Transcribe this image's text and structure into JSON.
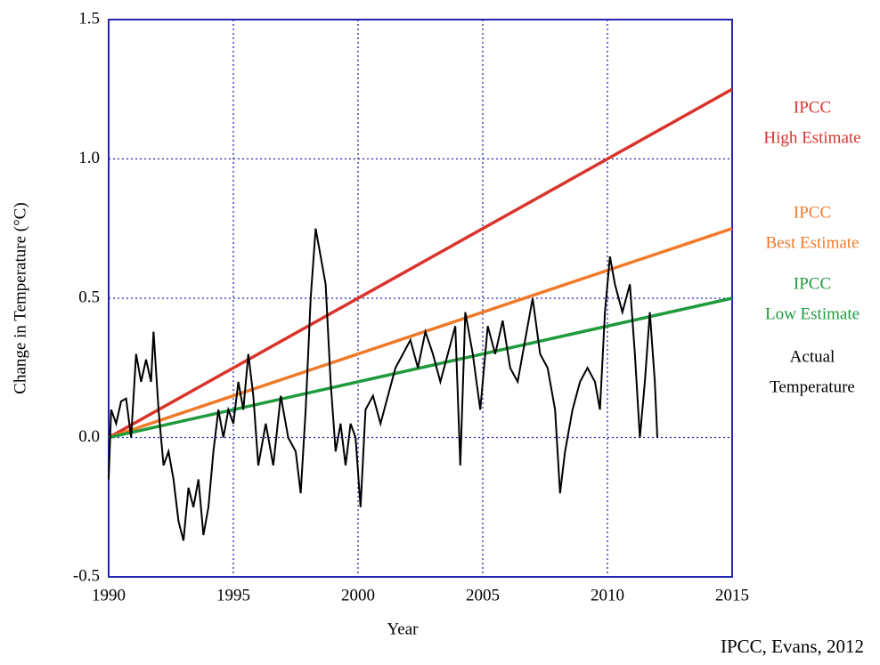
{
  "chart_data": {
    "type": "line",
    "xlabel": "Year",
    "ylabel": "Change in Temperature (°C)",
    "source": "IPCC, Evans, 2012",
    "xlim": [
      1990,
      2015
    ],
    "xticks": [
      1990,
      1995,
      2000,
      2005,
      2010,
      2015
    ],
    "ylim": [
      -0.5,
      1.5
    ],
    "yticks": [
      -0.5,
      {
        "value": 0,
        "label": "0.0"
      },
      0.5,
      {
        "value": 1,
        "label": "1.0"
      },
      1.5
    ],
    "grid": true,
    "series": [
      {
        "name": [
          "IPCC",
          "High Estimate"
        ],
        "color": "#d9342b",
        "x": [
          1990,
          2015
        ],
        "values": [
          0,
          1.25
        ]
      },
      {
        "name": [
          "IPCC",
          "Best Estimate"
        ],
        "color": "#f07a2a",
        "x": [
          1990,
          2015
        ],
        "values": [
          0,
          0.75
        ]
      },
      {
        "name": [
          "IPCC",
          "Low Estimate"
        ],
        "color": "#1f9a3c",
        "x": [
          1990,
          2015
        ],
        "values": [
          0,
          0.5
        ]
      },
      {
        "name": [
          "Actual",
          "Temperature"
        ],
        "color": "#000000",
        "x": [
          1990.0,
          1990.1,
          1990.3,
          1990.5,
          1990.7,
          1990.9,
          1991.1,
          1991.3,
          1991.5,
          1991.7,
          1991.8,
          1992.0,
          1992.2,
          1992.4,
          1992.6,
          1992.8,
          1993.0,
          1993.2,
          1993.4,
          1993.6,
          1993.8,
          1994.0,
          1994.2,
          1994.4,
          1994.6,
          1994.8,
          1995.0,
          1995.2,
          1995.4,
          1995.6,
          1995.8,
          1996.0,
          1996.3,
          1996.6,
          1996.9,
          1997.2,
          1997.5,
          1997.7,
          1997.9,
          1998.1,
          1998.3,
          1998.5,
          1998.7,
          1998.9,
          1999.1,
          1999.3,
          1999.5,
          1999.7,
          1999.9,
          2000.1,
          2000.3,
          2000.6,
          2000.9,
          2001.2,
          2001.5,
          2001.8,
          2002.1,
          2002.4,
          2002.7,
          2003.0,
          2003.3,
          2003.6,
          2003.9,
          2004.1,
          2004.3,
          2004.6,
          2004.9,
          2005.2,
          2005.5,
          2005.8,
          2006.1,
          2006.4,
          2006.7,
          2007.0,
          2007.3,
          2007.6,
          2007.9,
          2008.1,
          2008.3,
          2008.6,
          2008.9,
          2009.2,
          2009.5,
          2009.7,
          2009.9,
          2010.1,
          2010.3,
          2010.6,
          2010.9,
          2011.1,
          2011.3,
          2011.5,
          2011.7,
          2011.9,
          2012.0
        ],
        "values": [
          -0.15,
          0.1,
          0.05,
          0.13,
          0.14,
          0.0,
          0.3,
          0.2,
          0.28,
          0.2,
          0.38,
          0.1,
          -0.1,
          -0.05,
          -0.15,
          -0.3,
          -0.37,
          -0.18,
          -0.25,
          -0.15,
          -0.35,
          -0.25,
          -0.05,
          0.1,
          0.0,
          0.1,
          0.05,
          0.2,
          0.1,
          0.3,
          0.15,
          -0.1,
          0.05,
          -0.1,
          0.15,
          0.0,
          -0.05,
          -0.2,
          0.1,
          0.5,
          0.75,
          0.65,
          0.55,
          0.2,
          -0.05,
          0.05,
          -0.1,
          0.05,
          0.0,
          -0.25,
          0.1,
          0.15,
          0.05,
          0.15,
          0.25,
          0.3,
          0.35,
          0.25,
          0.38,
          0.3,
          0.2,
          0.3,
          0.4,
          -0.1,
          0.45,
          0.3,
          0.1,
          0.4,
          0.3,
          0.42,
          0.25,
          0.2,
          0.35,
          0.5,
          0.3,
          0.25,
          0.1,
          -0.2,
          -0.05,
          0.1,
          0.2,
          0.25,
          0.2,
          0.1,
          0.45,
          0.65,
          0.55,
          0.45,
          0.55,
          0.3,
          0.0,
          0.2,
          0.45,
          0.2,
          0.0
        ]
      }
    ]
  }
}
